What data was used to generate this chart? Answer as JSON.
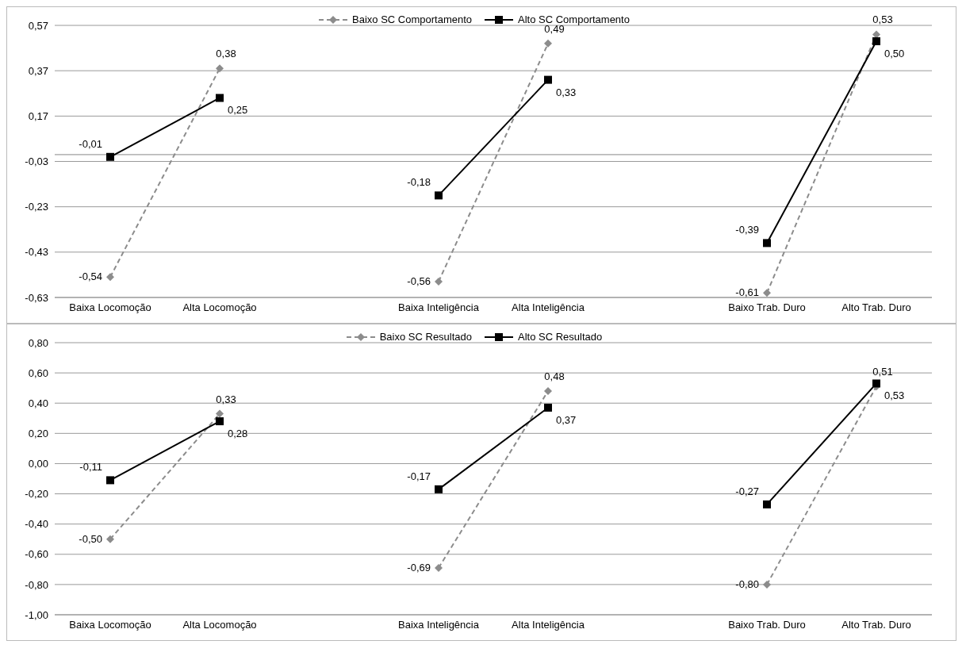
{
  "chart_data": [
    {
      "type": "line",
      "categories": [
        "Baixa Locomoção",
        "Alta Locomoção",
        null,
        "Baixa Inteligência",
        "Alta Inteligência",
        null,
        "Baixo Trab. Duro",
        "Alto Trab. Duro"
      ],
      "series": [
        {
          "name": "Baixo SC Comportamento",
          "color": "#8c8c8c",
          "marker": "diamond",
          "line_style": "dashed",
          "values": [
            -0.54,
            0.38,
            null,
            -0.56,
            0.49,
            null,
            -0.61,
            0.53
          ],
          "value_labels": [
            "-0,54",
            "0,38",
            null,
            "-0,56",
            "0,49",
            null,
            "-0,61",
            "0,53"
          ]
        },
        {
          "name": "Alto SC Comportamento",
          "color": "#000000",
          "marker": "square",
          "line_style": "solid",
          "values": [
            -0.01,
            0.25,
            null,
            -0.18,
            0.33,
            null,
            -0.39,
            0.5
          ],
          "value_labels": [
            "-0,01",
            "0,25",
            null,
            "-0,18",
            "0,33",
            null,
            "-0,39",
            "0,50"
          ]
        }
      ],
      "ylim": [
        -0.63,
        0.57
      ],
      "yticks": [
        {
          "value": -0.63,
          "label": "-0,63"
        },
        {
          "value": -0.43,
          "label": "-0,43"
        },
        {
          "value": -0.23,
          "label": "-0,23"
        },
        {
          "value": -0.03,
          "label": "-0,03"
        },
        {
          "value": 0.17,
          "label": "0,17"
        },
        {
          "value": 0.37,
          "label": "0,37"
        },
        {
          "value": 0.57,
          "label": "0,57"
        }
      ],
      "ref_lines": [
        {
          "axis": "y",
          "value": 0
        }
      ],
      "grid": "y",
      "legend": "top"
    },
    {
      "type": "line",
      "categories": [
        "Baixa Locomoção",
        "Alta Locomoção",
        null,
        "Baixa Inteligência",
        "Alta Inteligência",
        null,
        "Baixo Trab. Duro",
        "Alto Trab. Duro"
      ],
      "series": [
        {
          "name": "Baixo SC Resultado",
          "color": "#8c8c8c",
          "marker": "diamond",
          "line_style": "dashed",
          "values": [
            -0.5,
            0.33,
            null,
            -0.69,
            0.48,
            null,
            -0.8,
            0.51
          ],
          "value_labels": [
            "-0,50",
            "0,33",
            null,
            "-0,69",
            "0,48",
            null,
            "-0,80",
            "0,51"
          ]
        },
        {
          "name": "Alto SC Resultado",
          "color": "#000000",
          "marker": "square",
          "line_style": "solid",
          "values": [
            -0.11,
            0.28,
            null,
            -0.17,
            0.37,
            null,
            -0.27,
            0.53
          ],
          "value_labels": [
            "-0,11",
            "0,28",
            null,
            "-0,17",
            "0,37",
            null,
            "-0,27",
            "0,53"
          ]
        }
      ],
      "ylim": [
        -1.0,
        0.8
      ],
      "yticks": [
        {
          "value": -1.0,
          "label": "-1,00"
        },
        {
          "value": -0.8,
          "label": "-0,80"
        },
        {
          "value": -0.6,
          "label": "-0,60"
        },
        {
          "value": -0.4,
          "label": "-0,40"
        },
        {
          "value": -0.2,
          "label": "-0,20"
        },
        {
          "value": 0,
          "label": "0,00"
        },
        {
          "value": 0.2,
          "label": "0,20"
        },
        {
          "value": 0.4,
          "label": "0,40"
        },
        {
          "value": 0.6,
          "label": "0,60"
        },
        {
          "value": 0.8,
          "label": "0,80"
        }
      ],
      "grid": "y",
      "legend": "top"
    }
  ]
}
